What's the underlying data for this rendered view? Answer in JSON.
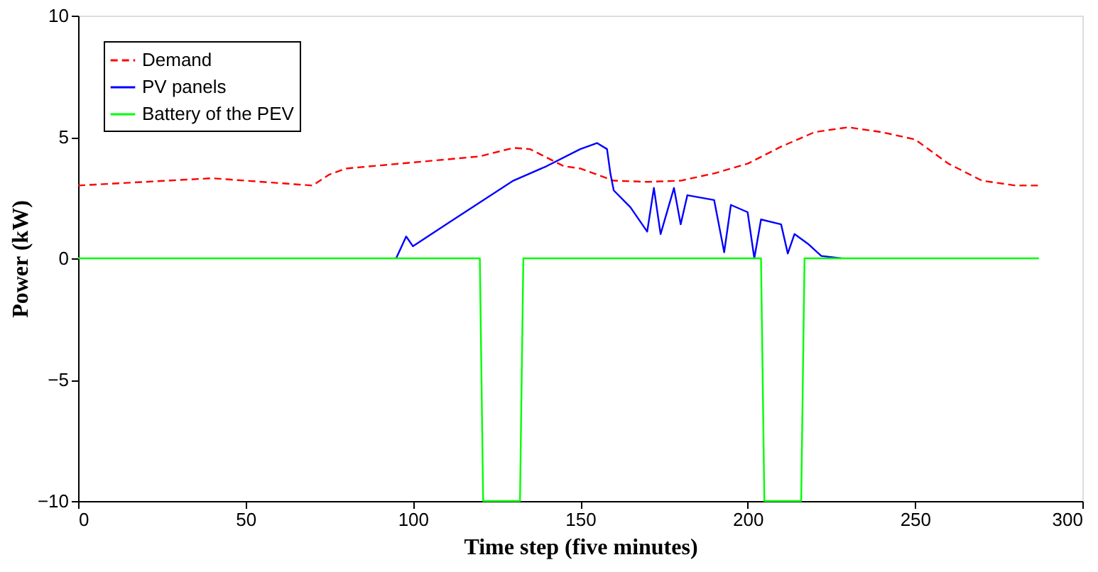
{
  "chart_data": {
    "type": "line",
    "xlabel": "Time step (five minutes)",
    "ylabel": "Power (kW)",
    "xlim": [
      0,
      300
    ],
    "xticks": [
      0,
      50,
      100,
      150,
      200,
      250,
      300
    ],
    "ylim": [
      -10,
      10
    ],
    "yticks": [
      -10,
      -5,
      0,
      5,
      10
    ],
    "grid": false,
    "legend": "top left",
    "marker": "none",
    "series": [
      {
        "name": "Demand",
        "color": "#ff0000",
        "line_style": "dashed",
        "x": [
          0,
          40,
          60,
          70,
          75,
          80,
          100,
          120,
          130,
          135,
          145,
          150,
          160,
          170,
          180,
          190,
          200,
          210,
          220,
          230,
          240,
          250,
          260,
          270,
          280,
          287
        ],
        "values": [
          3.0,
          3.3,
          3.1,
          3.0,
          3.45,
          3.7,
          3.95,
          4.2,
          4.55,
          4.5,
          3.8,
          3.7,
          3.2,
          3.15,
          3.2,
          3.5,
          3.9,
          4.6,
          5.2,
          5.4,
          5.2,
          4.9,
          3.9,
          3.2,
          3.0,
          3.0
        ]
      },
      {
        "name": "PV panels",
        "color": "#0000ff",
        "line_style": "solid",
        "x": [
          95,
          98,
          100,
          110,
          120,
          130,
          140,
          150,
          155,
          158,
          159,
          160,
          165,
          170,
          172,
          174,
          178,
          180,
          182,
          190,
          193,
          195,
          200,
          202,
          204,
          210,
          212,
          214,
          218,
          222,
          228
        ],
        "values": [
          0,
          0.9,
          0.5,
          1.4,
          2.3,
          3.2,
          3.8,
          4.5,
          4.75,
          4.5,
          3.5,
          2.8,
          2.1,
          1.1,
          2.9,
          1.0,
          2.9,
          1.4,
          2.6,
          2.4,
          0.25,
          2.2,
          1.9,
          0,
          1.6,
          1.4,
          0.2,
          1.0,
          0.6,
          0.1,
          0
        ]
      },
      {
        "name": "Battery of the PEV",
        "color": "#00ff00",
        "line_style": "solid",
        "x": [
          0,
          120,
          121,
          132,
          133,
          204,
          205,
          216,
          217,
          287
        ],
        "values": [
          0,
          0,
          -10,
          -10,
          0,
          0,
          -10,
          -10,
          0,
          0
        ]
      }
    ]
  }
}
